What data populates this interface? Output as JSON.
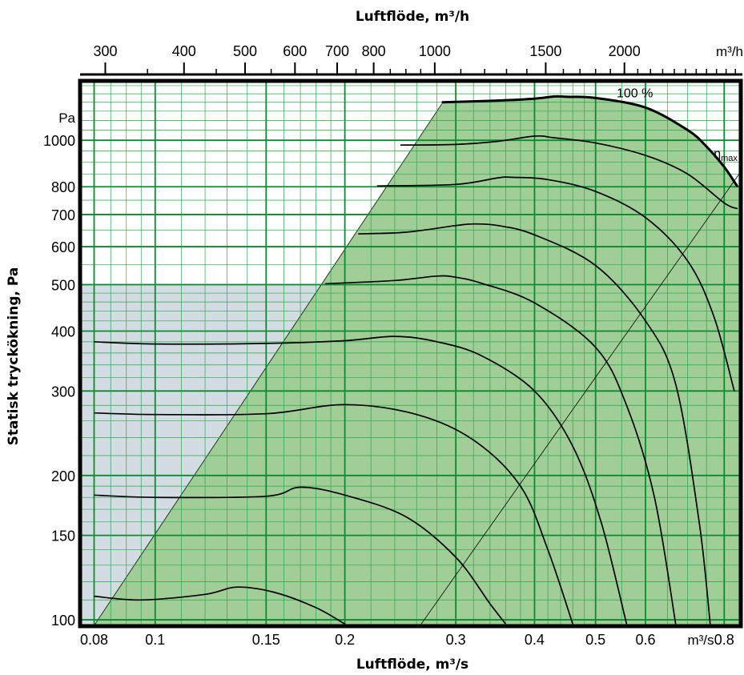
{
  "chart_data": {
    "type": "line",
    "title": "",
    "x_top_label": "Luftflöde, m³/h",
    "x_bottom_label": "Luftflöde, m³/s",
    "ylabel": "Statisk tryckökning, Pa",
    "x_scale": "log",
    "y_scale": "log",
    "xlim": [
      0.076,
      0.85
    ],
    "ylim": [
      97,
      1330
    ],
    "x_ticks": [
      0.08,
      0.1,
      0.15,
      0.2,
      0.3,
      0.4,
      0.5,
      0.6,
      0.8
    ],
    "x_tick_labels": [
      "0.08",
      "0.1",
      "0.15",
      "0.2",
      "0.3",
      "0.4",
      "0.5",
      "0.6",
      "0.8"
    ],
    "x_unit": "m³/s",
    "x_top_ticks": [
      300,
      400,
      500,
      600,
      700,
      800,
      1000,
      1500,
      2000
    ],
    "x_top_tick_labels": [
      "300",
      "400",
      "500",
      "600",
      "700",
      "800",
      "1000",
      "1500",
      "2000"
    ],
    "x_top_unit": "m³/h",
    "y_ticks": [
      100,
      150,
      200,
      300,
      400,
      500,
      600,
      700,
      800,
      1000
    ],
    "y_tick_labels": [
      "100",
      "150",
      "200",
      "300",
      "400",
      "500",
      "600",
      "700",
      "800",
      "1000"
    ],
    "y_unit": "Pa",
    "grid": true,
    "series": [
      {
        "x": [
          0.08,
          0.095,
          0.12,
          0.135,
          0.155,
          0.18,
          0.2
        ],
        "y": [
          112,
          110,
          113,
          117,
          114,
          106,
          98
        ]
      },
      {
        "x": [
          0.08,
          0.1,
          0.15,
          0.17,
          0.2,
          0.25,
          0.3,
          0.34,
          0.36
        ],
        "y": [
          182,
          180,
          181,
          189,
          182,
          164,
          135,
          108,
          98
        ]
      },
      {
        "x": [
          0.08,
          0.1,
          0.15,
          0.2,
          0.26,
          0.32,
          0.38,
          0.42,
          0.46
        ],
        "y": [
          270,
          268,
          269,
          281,
          268,
          237,
          190,
          140,
          98
        ]
      },
      {
        "x": [
          0.08,
          0.1,
          0.15,
          0.2,
          0.24,
          0.28,
          0.33,
          0.4,
          0.46,
          0.51,
          0.56
        ],
        "y": [
          380,
          376,
          377,
          382,
          390,
          380,
          355,
          300,
          230,
          160,
          98
        ]
      },
      {
        "x": [
          0.186,
          0.24,
          0.28,
          0.3,
          0.33,
          0.4,
          0.5,
          0.56,
          0.62,
          0.67
        ],
        "y": [
          502,
          510,
          521,
          518,
          503,
          458,
          370,
          280,
          180,
          98
        ]
      },
      {
        "x": [
          0.21,
          0.25,
          0.3,
          0.32,
          0.35,
          0.4,
          0.5,
          0.6,
          0.67,
          0.73,
          0.76
        ],
        "y": [
          638,
          643,
          664,
          669,
          664,
          635,
          548,
          420,
          310,
          160,
          98
        ]
      },
      {
        "x": [
          0.225,
          0.3,
          0.35,
          0.37,
          0.42,
          0.5,
          0.6,
          0.7,
          0.77,
          0.83
        ],
        "y": [
          803,
          809,
          835,
          837,
          828,
          782,
          690,
          560,
          430,
          300
        ]
      },
      {
        "x": [
          0.245,
          0.3,
          0.35,
          0.4,
          0.43,
          0.5,
          0.6,
          0.7,
          0.8,
          0.84
        ],
        "y": [
          977,
          980,
          995,
          1020,
          1012,
          987,
          930,
          850,
          740,
          720
        ]
      },
      {
        "x": [
          0.285,
          0.35,
          0.4,
          0.43,
          0.45,
          0.5,
          0.6,
          0.7,
          0.75,
          0.8,
          0.84
        ],
        "y": [
          1200,
          1210,
          1221,
          1234,
          1232,
          1225,
          1170,
          1050,
          970,
          880,
          800
        ]
      }
    ],
    "efficiency_line": {
      "x": [
        0.26,
        0.85
      ],
      "y": [
        95,
        860
      ]
    },
    "annotations": [
      {
        "text": "100 %",
        "x": 0.54,
        "y": 1230
      },
      {
        "text": "η",
        "sub": "max",
        "x": 0.77,
        "y": 920
      }
    ],
    "shaded_region_x": [
      0.076,
      0.186
    ],
    "shaded_region_y": [
      97,
      502
    ]
  }
}
